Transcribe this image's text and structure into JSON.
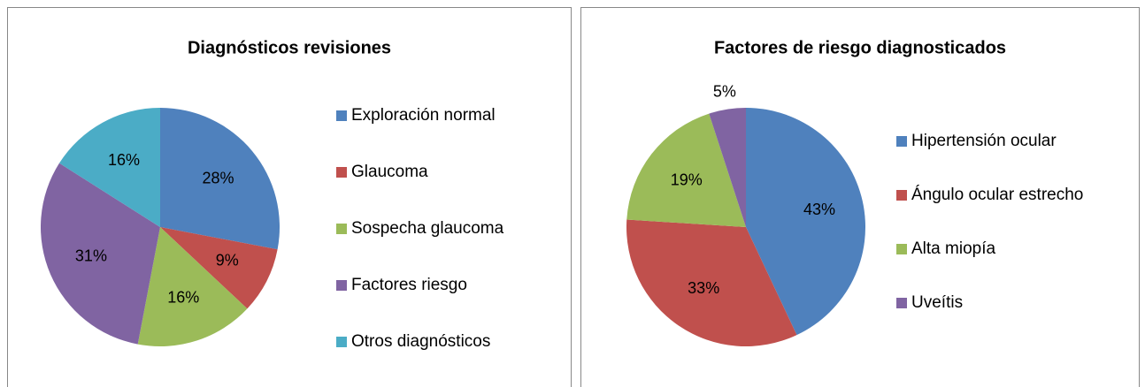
{
  "chart_data": [
    {
      "type": "pie",
      "title": "Diagnósticos revisiones",
      "categories": [
        "Exploración normal",
        "Glaucoma",
        "Sospecha glaucoma",
        "Factores riesgo",
        "Otros diagnósticos"
      ],
      "values": [
        28,
        9,
        16,
        31,
        16
      ],
      "value_labels": [
        "28%",
        "9%",
        "16%",
        "31%",
        "16%"
      ],
      "colors": [
        "#4f81bd",
        "#c0504d",
        "#9bbb59",
        "#8064a2",
        "#4bacc6"
      ],
      "legend": "right"
    },
    {
      "type": "pie",
      "title": "Factores de riesgo diagnosticados",
      "categories": [
        "Hipertensión ocular",
        "Ángulo ocular estrecho",
        "Alta miopía",
        "Uveítis"
      ],
      "values": [
        43,
        33,
        19,
        5
      ],
      "value_labels": [
        "43%",
        "33%",
        "19%",
        "5%"
      ],
      "colors": [
        "#4f81bd",
        "#c0504d",
        "#9bbb59",
        "#8064a2"
      ],
      "legend": "right"
    }
  ]
}
